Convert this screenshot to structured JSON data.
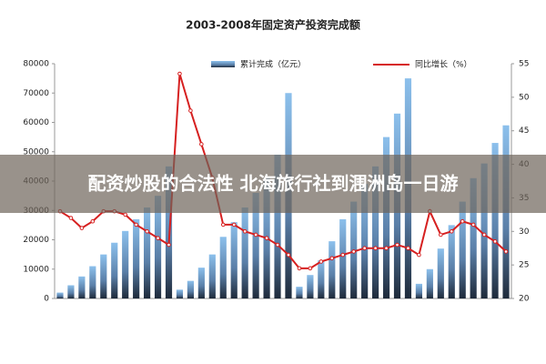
{
  "chart_data": {
    "type": "bar-line",
    "title": "2003-2008年固定资产投资完成额",
    "categories": [
      null,
      null,
      null,
      null,
      null,
      null,
      null,
      null,
      null,
      null,
      null,
      null,
      null,
      null,
      null,
      null,
      null,
      null,
      null,
      null,
      null,
      null,
      null,
      null,
      null,
      null,
      null,
      null,
      null,
      null,
      null,
      null,
      null,
      null,
      null,
      null,
      null,
      null,
      null,
      null,
      null,
      null
    ],
    "series": [
      {
        "name": "累计完成（亿元）",
        "kind": "bar",
        "color": "#7fb2e0",
        "values": [
          2000,
          4500,
          7500,
          11000,
          15000,
          19000,
          23000,
          27000,
          31000,
          35000,
          45000,
          3000,
          6000,
          10500,
          15000,
          21000,
          26000,
          31000,
          36000,
          41000,
          49000,
          70000,
          4000,
          8000,
          13000,
          19500,
          27000,
          33000,
          39000,
          45000,
          55000,
          63000,
          75000,
          5000,
          10000,
          17000,
          25000,
          33000,
          41000,
          46000,
          53000,
          59000
        ]
      },
      {
        "name": "同比增长（%）",
        "kind": "line",
        "axis": "y2",
        "color": "#d62020",
        "values": [
          33,
          32,
          30.5,
          31.5,
          33,
          33,
          32.5,
          31,
          30,
          29,
          28,
          53.5,
          48,
          43,
          38,
          31,
          31,
          30,
          29.5,
          29,
          28,
          26.5,
          24.5,
          24.5,
          25.5,
          26,
          26.5,
          27,
          27.5,
          27.5,
          27.5,
          28,
          27.5,
          26.5,
          33,
          29.5,
          30,
          31.5,
          31,
          29.5,
          28.5,
          27
        ]
      }
    ],
    "ylim": [
      0,
      80000
    ],
    "yticks": [
      0,
      10000,
      20000,
      30000,
      40000,
      50000,
      60000,
      70000,
      80000
    ],
    "y2lim": [
      20,
      55
    ],
    "y2ticks": [
      20,
      25,
      30,
      35,
      40,
      45,
      50,
      55
    ],
    "overlay_text": "配资炒股的合法性 北海旅行社到涠洲岛一日游"
  }
}
